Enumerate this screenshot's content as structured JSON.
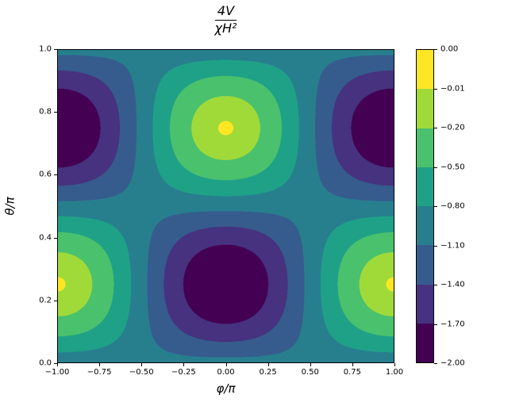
{
  "title": {
    "numerator": "4V",
    "denominator": "χH²"
  },
  "axes": {
    "xlabel": "φ/π",
    "ylabel": "θ/π",
    "x_tick_labels": [
      "−1.00",
      "−0.75",
      "−0.50",
      "−0.25",
      "0.00",
      "0.25",
      "0.50",
      "0.75",
      "1.00"
    ],
    "y_tick_labels": [
      "0.0",
      "0.2",
      "0.4",
      "0.6",
      "0.8",
      "1.0"
    ]
  },
  "colorbar": {
    "tick_labels": [
      "0.00",
      "−0.01",
      "−0.20",
      "−0.50",
      "−0.80",
      "−1.10",
      "−1.40",
      "−1.70",
      "−2.00"
    ]
  },
  "chart_data": {
    "type": "heatmap",
    "subtype": "filled-contour",
    "title": "4V/(χH²)",
    "xlabel": "φ/π",
    "ylabel": "θ/π",
    "x_range": [
      -1,
      1
    ],
    "y_range": [
      0,
      1
    ],
    "z_range": [
      -2,
      0
    ],
    "levels": [
      -2.0,
      -1.7,
      -1.4,
      -1.1,
      -0.8,
      -0.5,
      -0.2,
      -0.01,
      0.0
    ],
    "band_colors": [
      "#440154",
      "#46327e",
      "#365c8d",
      "#277f8e",
      "#1fa187",
      "#4ac16d",
      "#a0da39",
      "#fde725"
    ],
    "colormap": "viridis",
    "z_expression": "-1 - Math.cos(Math.PI*x)*Math.sin(2*Math.PI*y)",
    "features": {
      "minima": [
        {
          "x": 0,
          "y": 0.25,
          "z": -2
        },
        {
          "x": -1,
          "y": 0.75,
          "z": -2
        },
        {
          "x": 1,
          "y": 0.75,
          "z": -2
        }
      ],
      "maxima": [
        {
          "x": 0,
          "y": 0.75,
          "z": 0
        },
        {
          "x": -1,
          "y": 0.25,
          "z": 0
        },
        {
          "x": 1,
          "y": 0.25,
          "z": 0
        }
      ]
    }
  }
}
